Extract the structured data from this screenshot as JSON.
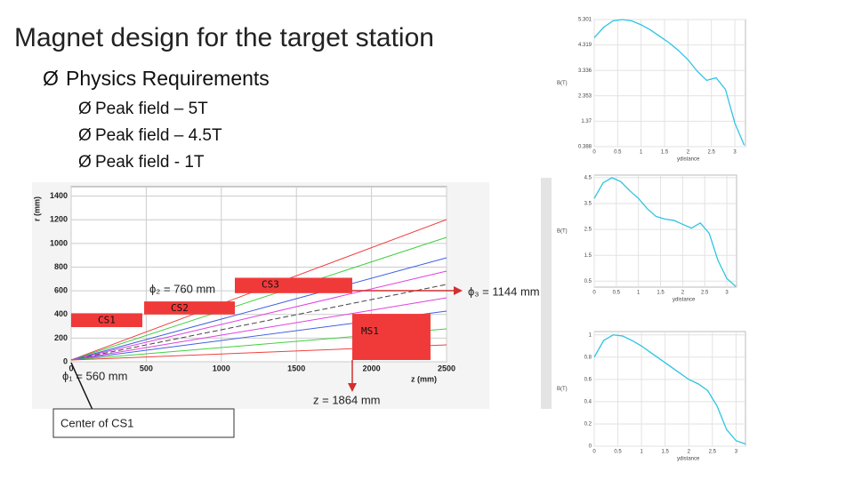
{
  "title": "Magnet design for the target station",
  "bullets": [
    {
      "text": "Physics Requirements",
      "items": [
        "Peak  field – 5T",
        "Peak  field – 4.5T",
        "Peak   field - 1T"
      ]
    }
  ],
  "annotations": {
    "phi2": "ϕ₂ = 760 mm",
    "phi3": "ϕ₃ = 1144 mm",
    "phi1": "ϕ₁ = 560 mm",
    "z": "z = 1864 mm",
    "callout": "Center of CS1"
  },
  "chart_data": [
    {
      "type": "coil-layout",
      "ylabel": "r (mm)",
      "xlabel": "z (mm)",
      "xlim": [
        0,
        2500
      ],
      "ylim": [
        0,
        1480
      ],
      "xticks": [
        0,
        500,
        1000,
        1500,
        2000,
        2500
      ],
      "yticks": [
        0,
        200,
        400,
        600,
        800,
        1000,
        1200,
        1400
      ],
      "grid": true,
      "color": "#f03a3a",
      "coils": [
        {
          "name": "CS1",
          "z": [
            0,
            474
          ],
          "r": [
            293,
            410
          ]
        },
        {
          "name": "CS2",
          "z": [
            486,
            1090
          ],
          "r": [
            400,
            510
          ]
        },
        {
          "name": "CS3",
          "z": [
            1090,
            1872
          ],
          "r": [
            580,
            710
          ]
        },
        {
          "name": "MS1",
          "z": [
            1872,
            2393
          ],
          "r": [
            15,
            405
          ]
        }
      ]
    },
    {
      "type": "line",
      "ylabel": "B(T)",
      "xlabel": "ydistance",
      "color": "#2cc4e4",
      "xlim": [
        0,
        3.227
      ],
      "ylim": [
        0.388,
        5.301
      ],
      "xticks": [
        0,
        0.5,
        1,
        1.5,
        2,
        2.5,
        3
      ],
      "yticks": [
        0.388,
        1.37,
        2.353,
        3.336,
        4.319,
        5.301
      ],
      "x": [
        0,
        0.2,
        0.4,
        0.6,
        0.8,
        1.0,
        1.2,
        1.4,
        1.6,
        1.8,
        2.0,
        2.2,
        2.4,
        2.6,
        2.8,
        3.0,
        3.2
      ],
      "values": [
        4.6,
        5.0,
        5.25,
        5.3,
        5.25,
        5.1,
        4.9,
        4.65,
        4.4,
        4.1,
        3.75,
        3.3,
        2.95,
        3.05,
        2.6,
        1.3,
        0.45
      ]
    },
    {
      "type": "line",
      "ylabel": "B(T)",
      "xlabel": "ydistance",
      "color": "#2cc4e4",
      "xlim": [
        0,
        3.22
      ],
      "ylim": [
        0.27,
        4.6
      ],
      "xticks": [
        0,
        0.5,
        1,
        1.5,
        2,
        2.5,
        3
      ],
      "yticks": [
        0.5,
        1.5,
        2.5,
        3.5,
        4.5
      ],
      "x": [
        0,
        0.2,
        0.4,
        0.6,
        0.8,
        1.0,
        1.2,
        1.4,
        1.6,
        1.8,
        2.0,
        2.2,
        2.4,
        2.6,
        2.8,
        3.0,
        3.2
      ],
      "values": [
        3.7,
        4.3,
        4.5,
        4.35,
        4.0,
        3.7,
        3.3,
        3.0,
        2.9,
        2.85,
        2.7,
        2.55,
        2.75,
        2.35,
        1.3,
        0.6,
        0.3
      ]
    },
    {
      "type": "line",
      "ylabel": "B(T)",
      "xlabel": "ydistance",
      "color": "#2cc4e4",
      "xlim": [
        0,
        3.2
      ],
      "ylim": [
        0,
        1.03
      ],
      "xticks": [
        0,
        0.5,
        1,
        1.5,
        2,
        2.5,
        3
      ],
      "yticks": [
        0,
        0.2,
        0.4,
        0.6,
        0.8,
        1
      ],
      "x": [
        0,
        0.2,
        0.4,
        0.6,
        0.8,
        1.0,
        1.2,
        1.4,
        1.6,
        1.8,
        2.0,
        2.2,
        2.4,
        2.6,
        2.8,
        3.0,
        3.2
      ],
      "values": [
        0.8,
        0.95,
        1.0,
        0.99,
        0.95,
        0.9,
        0.84,
        0.78,
        0.72,
        0.66,
        0.6,
        0.56,
        0.5,
        0.36,
        0.15,
        0.05,
        0.02
      ]
    }
  ]
}
